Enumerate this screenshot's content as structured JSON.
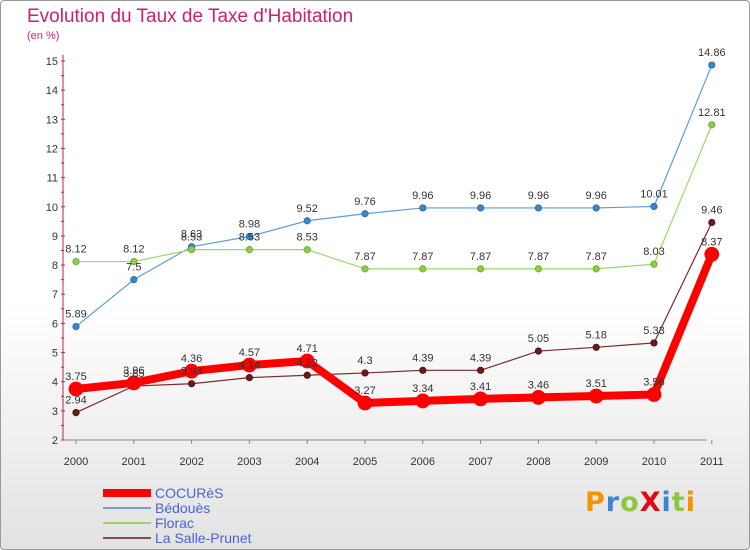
{
  "chart_data": {
    "type": "line",
    "title": "Evolution du Taux de Taxe d'Habitation",
    "subtitle": "(en %)",
    "xlabel": "",
    "ylabel": "",
    "categories": [
      "2000",
      "2001",
      "2002",
      "2003",
      "2004",
      "2005",
      "2006",
      "2007",
      "2008",
      "2009",
      "2010",
      "2011"
    ],
    "ylim": [
      2,
      15
    ],
    "yticks": [
      "2",
      "3",
      "4",
      "5",
      "6",
      "7",
      "8",
      "9",
      "10",
      "11",
      "12",
      "13",
      "14",
      "15"
    ],
    "grid": false,
    "legend_position": "bottom-left",
    "series": [
      {
        "name": "COCURèS",
        "color": "#ff0000",
        "values": [
          3.75,
          3.96,
          4.36,
          4.57,
          4.71,
          3.27,
          3.34,
          3.41,
          3.46,
          3.51,
          3.56,
          8.37
        ],
        "labels": [
          "3.75",
          "3.96",
          "4.36",
          "4.57",
          "4.71",
          "3.27",
          "3.34",
          "3.41",
          "3.46",
          "3.51",
          "3.56",
          "8.37"
        ]
      },
      {
        "name": "Bédouès",
        "color": "#4a8ec2",
        "values": [
          5.89,
          7.5,
          8.63,
          8.98,
          9.52,
          9.76,
          9.96,
          9.96,
          9.96,
          9.96,
          10.01,
          14.86
        ],
        "labels": [
          "5.89",
          "7.5",
          "8.63",
          "8.98",
          "9.52",
          "9.76",
          "9.96",
          "9.96",
          "9.96",
          "9.96",
          "10.01",
          "14.86"
        ]
      },
      {
        "name": "Florac",
        "color": "#88cc44",
        "values": [
          8.12,
          8.12,
          8.53,
          8.53,
          8.53,
          7.87,
          7.87,
          7.87,
          7.87,
          7.87,
          8.03,
          12.81
        ],
        "labels": [
          "8.12",
          "8.12",
          "8.53",
          "8.53",
          "8.53",
          "7.87",
          "7.87",
          "7.87",
          "7.87",
          "7.87",
          "8.03",
          "12.81"
        ]
      },
      {
        "name": "La Salle-Prunet",
        "color": "#6b1a1a",
        "values": [
          2.94,
          3.85,
          3.93,
          4.14,
          4.22,
          4.3,
          4.39,
          4.39,
          5.05,
          5.18,
          5.33,
          9.46
        ],
        "labels": [
          "2.94",
          "3.85",
          "3.93",
          "4.14",
          "4.22",
          "4.3",
          "4.39",
          "4.39",
          "5.05",
          "5.18",
          "5.33",
          "9.46"
        ]
      }
    ]
  },
  "brand": {
    "text": "ProXiti",
    "colors": [
      "#f29400",
      "#3a86d1",
      "#8dc63f",
      "#e30613",
      "#3a86d1",
      "#8dc63f",
      "#f29400"
    ]
  }
}
